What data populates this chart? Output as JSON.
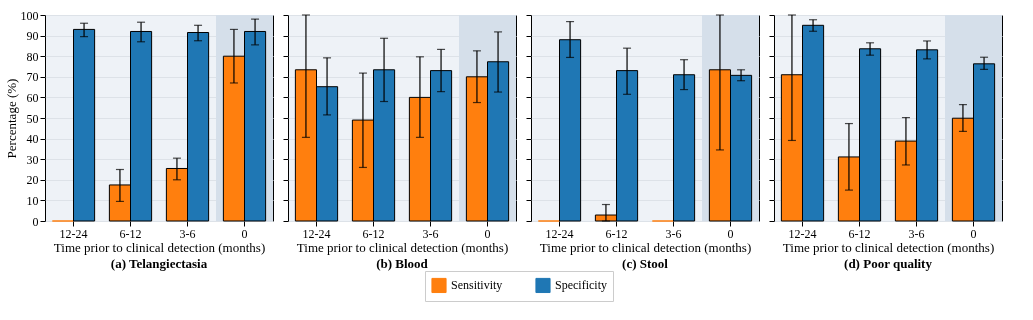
{
  "chart_data": [
    {
      "type": "bar",
      "title": "(a) Telangiectasia",
      "xlabel": "Time prior to clinical detection (months)",
      "ylabel": "Percentage (%)",
      "categories": [
        "12-24",
        "6-12",
        "3-6",
        "0"
      ],
      "ylim": [
        0,
        100
      ],
      "yticks": [
        0,
        10,
        20,
        30,
        40,
        50,
        60,
        70,
        80,
        90,
        100
      ],
      "grid": "y",
      "legend": "bottom",
      "bands": [
        {
          "axis": "x",
          "from": "0",
          "to": "0",
          "color": "#d5dfea"
        }
      ],
      "series": [
        {
          "name": "Sensitivity",
          "color": "#ff7f0e",
          "values": [
            0,
            17.5,
            25.5,
            80
          ],
          "errors": [
            null,
            [
              9.5,
              25
            ],
            [
              20,
              30.5
            ],
            [
              67,
              93
            ]
          ]
        },
        {
          "name": "Specificity",
          "color": "#1f77b4",
          "values": [
            93,
            92,
            91.5,
            92
          ],
          "errors": [
            [
              89.5,
              96
            ],
            [
              87,
              96.5
            ],
            [
              87.5,
              95
            ],
            [
              85.5,
              98
            ]
          ]
        }
      ]
    },
    {
      "type": "bar",
      "title": "(b) Blood",
      "xlabel": "Time prior to clinical detection (months)",
      "categories": [
        "12-24",
        "6-12",
        "3-6",
        "0"
      ],
      "ylim": [
        0,
        100
      ],
      "yticks": [
        0,
        10,
        20,
        30,
        40,
        50,
        60,
        70,
        80,
        90,
        100
      ],
      "grid": "y",
      "tick_labels": "x",
      "legend": "bottom",
      "bands": [
        {
          "axis": "x",
          "from": "0",
          "to": "0",
          "color": "#d5dfea"
        }
      ],
      "series": [
        {
          "name": "Sensitivity",
          "color": "#ff7f0e",
          "values": [
            73.4,
            49,
            60,
            70
          ],
          "errors": [
            [
              40.6,
              100
            ],
            [
              26,
              71.8
            ],
            [
              40.6,
              79.7
            ],
            [
              57.5,
              82.6
            ]
          ]
        },
        {
          "name": "Specificity",
          "color": "#1f77b4",
          "values": [
            65.2,
            73.4,
            73,
            77.3
          ],
          "errors": [
            [
              51.5,
              79.2
            ],
            [
              58,
              88.7
            ],
            [
              62.8,
              83.3
            ],
            [
              62.6,
              91.8
            ]
          ]
        }
      ]
    },
    {
      "type": "bar",
      "title": "(c) Stool",
      "xlabel": "Time prior to clinical detection (months)",
      "categories": [
        "12-24",
        "6-12",
        "3-6",
        "0"
      ],
      "ylim": [
        0,
        100
      ],
      "yticks": [
        0,
        10,
        20,
        30,
        40,
        50,
        60,
        70,
        80,
        90,
        100
      ],
      "grid": "y",
      "tick_labels": "x",
      "legend": "bottom",
      "bands": [
        {
          "axis": "x",
          "from": "0",
          "to": "0",
          "color": "#d5dfea"
        }
      ],
      "series": [
        {
          "name": "Sensitivity",
          "color": "#ff7f0e",
          "values": [
            0,
            2.9,
            0,
            73.4
          ],
          "errors": [
            null,
            [
              0,
              8
            ],
            null,
            [
              34.5,
              100
            ]
          ]
        },
        {
          "name": "Specificity",
          "color": "#1f77b4",
          "values": [
            88,
            73,
            71,
            70.7
          ],
          "errors": [
            [
              79.4,
              96.8
            ],
            [
              61.5,
              83.9
            ],
            [
              63.8,
              78.3
            ],
            [
              68.1,
              73.4
            ]
          ]
        }
      ]
    },
    {
      "type": "bar",
      "title": "(d) Poor quality",
      "xlabel": "Time prior to clinical detection (months)",
      "categories": [
        "12-24",
        "6-12",
        "3-6",
        "0"
      ],
      "ylim": [
        0,
        100
      ],
      "yticks": [
        0,
        10,
        20,
        30,
        40,
        50,
        60,
        70,
        80,
        90,
        100
      ],
      "grid": "y",
      "tick_labels": "x",
      "legend": "bottom",
      "bands": [
        {
          "axis": "x",
          "from": "0",
          "to": "0",
          "color": "#d5dfea"
        }
      ],
      "series": [
        {
          "name": "Sensitivity",
          "color": "#ff7f0e",
          "values": [
            71,
            31.1,
            38.8,
            49.9
          ],
          "errors": [
            [
              39.1,
              100
            ],
            [
              15,
              47.3
            ],
            [
              27.2,
              50.2
            ],
            [
              43.5,
              56.5
            ]
          ]
        },
        {
          "name": "Specificity",
          "color": "#1f77b4",
          "values": [
            95,
            83.6,
            83.1,
            76.3
          ],
          "errors": [
            [
              92.1,
              97.7
            ],
            [
              80.5,
              86.5
            ],
            [
              78.7,
              87.4
            ],
            [
              73.6,
              79.5
            ]
          ]
        }
      ]
    }
  ]
}
